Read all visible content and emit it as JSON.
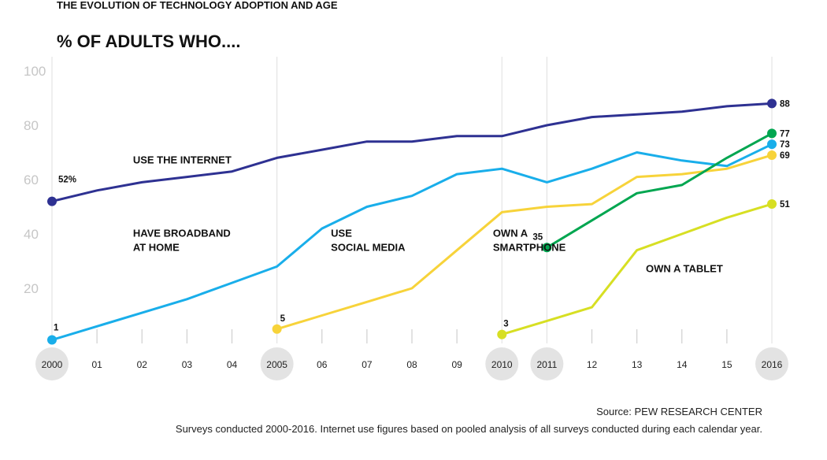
{
  "supertitle": "THE EVOLUTION OF TECHNOLOGY ADOPTION AND AGE",
  "title": "% OF ADULTS WHO....",
  "source": "Source: PEW RESEARCH CENTER",
  "note": "Surveys conducted 2000-2016. Internet use figures based on pooled analysis of all surveys conducted during each calendar year.",
  "chart_data": {
    "type": "line",
    "title": "% OF ADULTS WHO....",
    "xlabel": "",
    "ylabel": "",
    "ylim": [
      0,
      100
    ],
    "yticks": [
      20,
      40,
      60,
      80,
      100
    ],
    "x": [
      2000,
      2001,
      2002,
      2003,
      2004,
      2005,
      2006,
      2007,
      2008,
      2009,
      2010,
      2011,
      2012,
      2013,
      2014,
      2015,
      2016
    ],
    "xtick_labels": [
      "2000",
      "01",
      "02",
      "03",
      "04",
      "2005",
      "06",
      "07",
      "08",
      "09",
      "2010",
      "2011",
      "12",
      "13",
      "14",
      "15",
      "2016"
    ],
    "highlighted_years": [
      2000,
      2005,
      2010,
      2011,
      2016
    ],
    "series": [
      {
        "name": "USE THE INTERNET",
        "label_lines": [
          "USE THE INTERNET"
        ],
        "color": "#2e3192",
        "x": [
          2000,
          2001,
          2002,
          2003,
          2004,
          2005,
          2006,
          2007,
          2008,
          2009,
          2010,
          2011,
          2012,
          2013,
          2014,
          2015,
          2016
        ],
        "values": [
          52,
          56,
          59,
          61,
          63,
          68,
          71,
          74,
          74,
          76,
          76,
          80,
          83,
          84,
          85,
          87,
          88
        ],
        "start_label": "52%",
        "end_label": "88"
      },
      {
        "name": "HAVE BROADBAND AT HOME",
        "label_lines": [
          "HAVE BROADBAND",
          "AT HOME"
        ],
        "color": "#19aeea",
        "x": [
          2000,
          2001,
          2002,
          2003,
          2004,
          2005,
          2006,
          2007,
          2008,
          2009,
          2010,
          2011,
          2012,
          2013,
          2014,
          2015,
          2016
        ],
        "values": [
          1,
          6,
          11,
          16,
          22,
          28,
          42,
          50,
          54,
          62,
          64,
          59,
          64,
          70,
          67,
          65,
          73
        ],
        "start_label": "1",
        "end_label": "73"
      },
      {
        "name": "USE SOCIAL MEDIA",
        "label_lines": [
          "USE",
          "SOCIAL MEDIA"
        ],
        "color": "#f7d33a",
        "x": [
          2005,
          2006,
          2007,
          2008,
          2009,
          2010,
          2011,
          2012,
          2013,
          2014,
          2015,
          2016
        ],
        "values": [
          5,
          10,
          15,
          20,
          34,
          48,
          50,
          51,
          61,
          62,
          64,
          69
        ],
        "start_label": "5",
        "end_label": "69"
      },
      {
        "name": "OWN A SMARTPHONE",
        "label_lines": [
          "OWN A",
          "SMARTPHONE"
        ],
        "color": "#00a650",
        "x": [
          2011,
          2012,
          2013,
          2014,
          2015,
          2016
        ],
        "values": [
          35,
          45,
          55,
          58,
          68,
          77
        ],
        "start_label": "35",
        "end_label": "77"
      },
      {
        "name": "OWN A TABLET",
        "label_lines": [
          "OWN A TABLET"
        ],
        "color": "#d7df23",
        "x": [
          2010,
          2011,
          2012,
          2013,
          2014,
          2015,
          2016
        ],
        "values": [
          3,
          8,
          13,
          34,
          40,
          46,
          51
        ],
        "start_label": "3",
        "end_label": "51"
      }
    ]
  }
}
